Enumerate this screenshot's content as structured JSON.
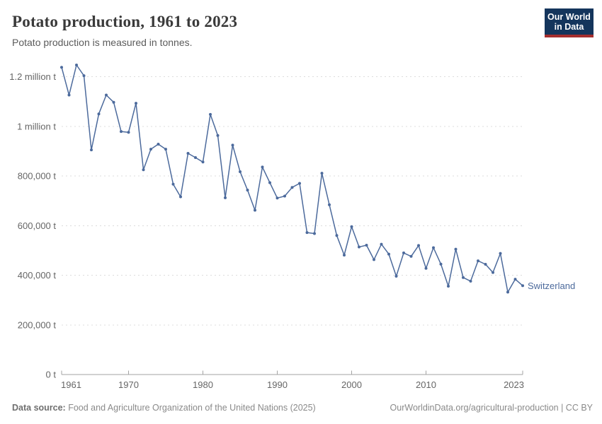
{
  "header": {
    "title": "Potato production, 1961 to 2023",
    "subtitle": "Potato production is measured in tonnes.",
    "logo": {
      "line1": "Our World",
      "line2": "in Data",
      "bg_color": "#14355c",
      "accent_color": "#a52e2e"
    }
  },
  "chart_data": {
    "type": "line",
    "title": "Potato production, 1961 to 2023",
    "entity": "Switzerland",
    "unit": "tonnes",
    "line_color": "#4c6a9c",
    "grid": "horizontal dashed",
    "legend_position": "line-end label",
    "xlabel": "",
    "ylabel": "",
    "xlim": [
      1961,
      2023
    ],
    "ylim": [
      0,
      1200000
    ],
    "x": [
      1961,
      1962,
      1963,
      1964,
      1965,
      1966,
      1967,
      1968,
      1969,
      1970,
      1971,
      1972,
      1973,
      1974,
      1975,
      1976,
      1977,
      1978,
      1979,
      1980,
      1981,
      1982,
      1983,
      1984,
      1985,
      1986,
      1987,
      1988,
      1989,
      1990,
      1991,
      1992,
      1993,
      1994,
      1995,
      1996,
      1997,
      1998,
      1999,
      2000,
      2001,
      2002,
      2003,
      2004,
      2005,
      2006,
      2007,
      2008,
      2009,
      2010,
      2011,
      2012,
      2013,
      2014,
      2015,
      2016,
      2017,
      2018,
      2019,
      2020,
      2021,
      2022,
      2023
    ],
    "values": [
      1238000,
      1126000,
      1247000,
      1204000,
      905000,
      1050000,
      1126000,
      1097000,
      979000,
      976000,
      1093000,
      825000,
      908000,
      928000,
      908000,
      767000,
      716000,
      891000,
      874000,
      856000,
      1048000,
      963000,
      712000,
      924000,
      817000,
      743000,
      662000,
      836000,
      773000,
      711000,
      719000,
      754000,
      770000,
      572000,
      568000,
      811000,
      684000,
      560000,
      481000,
      596000,
      514000,
      521000,
      463000,
      525000,
      485000,
      396000,
      490000,
      476000,
      520000,
      428000,
      511000,
      445000,
      356000,
      505000,
      391000,
      376000,
      458000,
      444000,
      411000,
      488000,
      332000,
      384000,
      358000
    ],
    "yticks": [
      {
        "value": 0,
        "label": "0 t"
      },
      {
        "value": 200000,
        "label": "200,000 t"
      },
      {
        "value": 400000,
        "label": "400,000 t"
      },
      {
        "value": 600000,
        "label": "600,000 t"
      },
      {
        "value": 800000,
        "label": "800,000 t"
      },
      {
        "value": 1000000,
        "label": "1 million t"
      },
      {
        "value": 1200000,
        "label": "1.2 million t"
      }
    ],
    "xticks": [
      {
        "value": 1961,
        "label": "1961",
        "align": "start"
      },
      {
        "value": 1970,
        "label": "1970",
        "align": "middle"
      },
      {
        "value": 1980,
        "label": "1980",
        "align": "middle"
      },
      {
        "value": 1990,
        "label": "1990",
        "align": "middle"
      },
      {
        "value": 2000,
        "label": "2000",
        "align": "middle"
      },
      {
        "value": 2010,
        "label": "2010",
        "align": "middle"
      },
      {
        "value": 2023,
        "label": "2023",
        "align": "end"
      }
    ]
  },
  "footer": {
    "datasource_label": "Data source:",
    "datasource_text": " Food and Agriculture Organization of the United Nations (2025)",
    "credit": "OurWorldinData.org/agricultural-production | CC BY"
  }
}
